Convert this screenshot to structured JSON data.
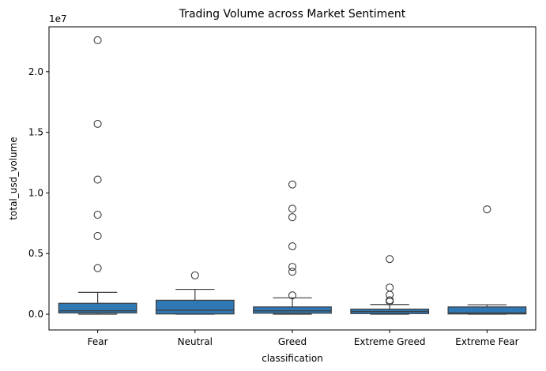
{
  "chart_data": {
    "type": "box",
    "title": "Trading Volume across Market Sentiment",
    "xlabel": "classification",
    "ylabel": "total_usd_volume",
    "offset_label": "1e7",
    "ylim": [
      -1300000,
      23700000
    ],
    "yticks": [
      0,
      5000000,
      10000000,
      15000000,
      20000000
    ],
    "ytick_labels": [
      "0.0",
      "0.5",
      "1.0",
      "1.5",
      "2.0"
    ],
    "categories": [
      "Fear",
      "Neutral",
      "Greed",
      "Extreme Greed",
      "Extreme Fear"
    ],
    "grid": false,
    "box_color": "#2f78b3",
    "edge_color": "#3d3d3d",
    "boxes": [
      {
        "category": "Fear",
        "whisker_low": 0,
        "q1": 100000,
        "median": 280000,
        "q3": 900000,
        "whisker_high": 1800000,
        "outliers": [
          3800000,
          6450000,
          8200000,
          11100000,
          15700000,
          22600000
        ]
      },
      {
        "category": "Neutral",
        "whisker_low": 0,
        "q1": 20000,
        "median": 330000,
        "q3": 1150000,
        "whisker_high": 2050000,
        "outliers": [
          3200000
        ]
      },
      {
        "category": "Greed",
        "whisker_low": 0,
        "q1": 80000,
        "median": 280000,
        "q3": 600000,
        "whisker_high": 1350000,
        "outliers": [
          1550000,
          3500000,
          3900000,
          5600000,
          8000000,
          8700000,
          10700000
        ]
      },
      {
        "category": "Extreme Greed",
        "whisker_low": 0,
        "q1": 50000,
        "median": 220000,
        "q3": 420000,
        "whisker_high": 800000,
        "outliers": [
          1050000,
          1150000,
          1600000,
          2200000,
          4550000
        ]
      },
      {
        "category": "Extreme Fear",
        "whisker_low": 0,
        "q1": 20000,
        "median": 100000,
        "q3": 600000,
        "whisker_high": 780000,
        "outliers": [
          8650000
        ]
      }
    ]
  }
}
